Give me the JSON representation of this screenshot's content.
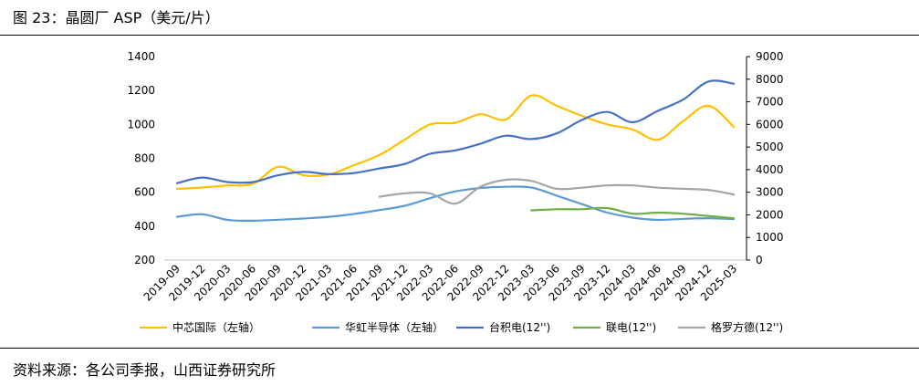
{
  "header": {
    "title": "图 23：晶圆厂 ASP（美元/片）"
  },
  "footer": {
    "source": "资料来源：各公司季报，山西证券研究所"
  },
  "chart_data": {
    "type": "line",
    "categories": [
      "2019-09",
      "2019-12",
      "2020-03",
      "2020-06",
      "2020-09",
      "2020-12",
      "2021-03",
      "2021-06",
      "2021-09",
      "2021-12",
      "2022-03",
      "2022-06",
      "2022-09",
      "2022-12",
      "2023-03",
      "2023-06",
      "2023-09",
      "2023-12",
      "2024-03",
      "2024-06",
      "2024-09",
      "2024-12",
      "2025-03"
    ],
    "left_axis": {
      "min": 200,
      "max": 1400,
      "ticks": [
        "200",
        "400",
        "600",
        "800",
        "1000",
        "1200",
        "1400"
      ]
    },
    "right_axis": {
      "min": 0,
      "max": 9000,
      "ticks": [
        "0",
        "1000",
        "2000",
        "3000",
        "4000",
        "5000",
        "6000",
        "7000",
        "8000",
        "9000"
      ]
    },
    "series": [
      {
        "name": "中芯国际（左轴）",
        "axis": "left",
        "color": "#FFC000",
        "values": [
          620,
          628,
          640,
          650,
          750,
          700,
          705,
          760,
          820,
          910,
          1000,
          1010,
          1060,
          1030,
          1170,
          1110,
          1050,
          1000,
          970,
          910,
          1020,
          1110,
          985
        ]
      },
      {
        "name": "华虹半导体（左轴）",
        "axis": "left",
        "color": "#5B9BD5",
        "values": [
          455,
          470,
          437,
          432,
          438,
          445,
          455,
          472,
          495,
          520,
          565,
          605,
          625,
          632,
          628,
          580,
          530,
          480,
          450,
          437,
          443,
          447,
          442
        ]
      },
      {
        "name": "台积电(12'')",
        "axis": "right",
        "color": "#4472C4",
        "values": [
          3400,
          3650,
          3450,
          3450,
          3750,
          3900,
          3800,
          3850,
          4050,
          4250,
          4700,
          4850,
          5150,
          5500,
          5350,
          5600,
          6200,
          6550,
          6100,
          6600,
          7100,
          7900,
          7800
        ]
      },
      {
        "name": "联电(12'')",
        "axis": "right",
        "color": "#70AD47",
        "values": [
          null,
          null,
          null,
          null,
          null,
          null,
          null,
          null,
          null,
          null,
          null,
          null,
          null,
          null,
          2200,
          2250,
          2250,
          2300,
          2050,
          2100,
          2050,
          1950,
          1850
        ]
      },
      {
        "name": "格罗方德(12'')",
        "axis": "right",
        "color": "#A5A5A5",
        "values": [
          null,
          null,
          null,
          null,
          null,
          null,
          null,
          null,
          2800,
          2950,
          2950,
          2500,
          3250,
          3550,
          3500,
          3150,
          3200,
          3300,
          3300,
          3200,
          3150,
          3100,
          2900
        ]
      }
    ]
  }
}
